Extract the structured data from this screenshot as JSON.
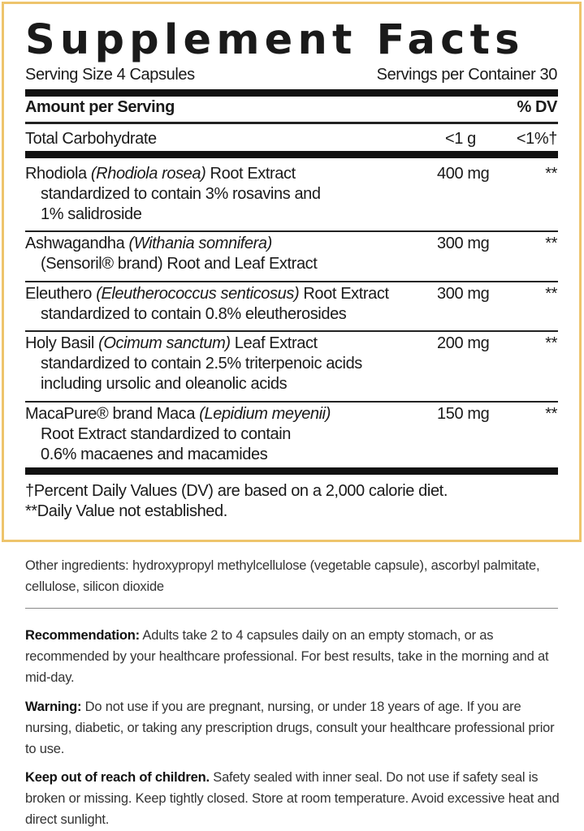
{
  "title": "Supplement Facts",
  "serving_size": "Serving Size 4 Capsules",
  "servings_per_container": "Servings per Container 30",
  "header": {
    "amount": "Amount per Serving",
    "dv": "% DV"
  },
  "carb": {
    "name": "Total Carbohydrate",
    "amount": "<1 g",
    "dv": "<1%†"
  },
  "ingredients": [
    {
      "name": "Rhodiola",
      "latin": "(Rhodiola rosea)",
      "rest": "Root Extract",
      "lines": [
        "standardized to contain 3% rosavins and",
        "1% salidroside"
      ],
      "amount": "400 mg",
      "dv": "**"
    },
    {
      "name": "Ashwagandha",
      "latin": "(Withania somnifera)",
      "rest": "",
      "lines": [
        "(Sensoril® brand) Root and Leaf Extract"
      ],
      "amount": "300 mg",
      "dv": "**"
    },
    {
      "name": "Eleuthero",
      "latin": "(Eleutherococcus senticosus)",
      "rest": "Root Extract",
      "lines": [
        "standardized to contain 0.8% eleutherosides"
      ],
      "amount": "300 mg",
      "dv": "**"
    },
    {
      "name": "Holy Basil",
      "latin": "(Ocimum sanctum)",
      "rest": "Leaf Extract",
      "lines": [
        "standardized to contain 2.5% triterpenoic acids",
        "including ursolic and oleanolic acids"
      ],
      "amount": "200 mg",
      "dv": "**"
    },
    {
      "name": "MacaPure® brand Maca",
      "latin": "(Lepidium meyenii)",
      "rest": "",
      "lines": [
        "Root Extract standardized to contain",
        "0.6% macaenes and macamides"
      ],
      "amount": "150 mg",
      "dv": "**"
    }
  ],
  "footnotes": [
    "†Percent Daily Values (DV) are based on a 2,000 calorie diet.",
    "**Daily Value not established."
  ],
  "other_ingredients": "Other ingredients: hydroxypropyl methylcellulose (vegetable capsule), ascorbyl palmitate, cellulose, silicon dioxide",
  "recommendation": {
    "label": "Recommendation:",
    "text": " Adults take 2 to 4 capsules daily on an empty stomach, or as recommended by your healthcare professional. For best results, take in the morning and at mid-day."
  },
  "warning": {
    "label": "Warning:",
    "text": " Do not use if you are pregnant, nursing, or under 18 years of age. If you are nursing, diabetic, or taking any prescription drugs, consult your healthcare professional prior to use."
  },
  "keep_out": {
    "label": "Keep out of reach of children.",
    "text": " Safety sealed with inner seal. Do not use if safety seal is broken or missing. Keep tightly closed. Store at room temperature. Avoid excessive heat and direct sunlight."
  },
  "colors": {
    "border": "#eec46c"
  }
}
